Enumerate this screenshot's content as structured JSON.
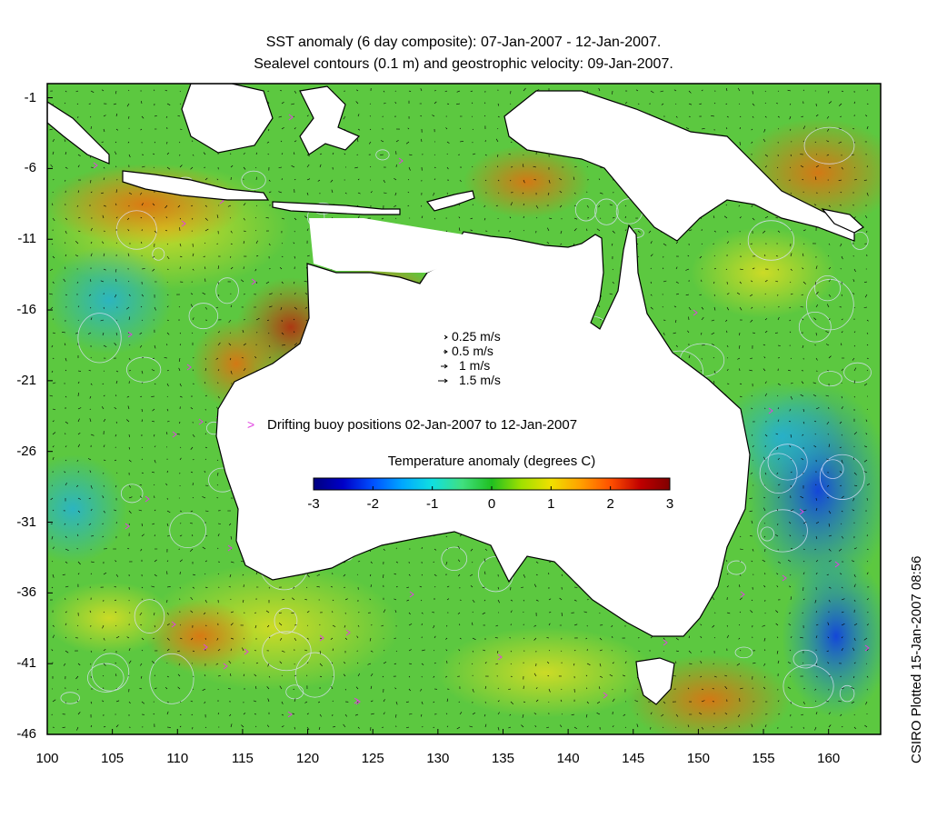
{
  "title": {
    "line1": "SST anomaly (6 day composite): 07-Jan-2007 - 12-Jan-2007.",
    "line2": "Sealevel contours (0.1 m) and geostrophic velocity: 09-Jan-2007."
  },
  "axes": {
    "x_ticks": [
      "100",
      "105",
      "110",
      "115",
      "120",
      "125",
      "130",
      "135",
      "140",
      "145",
      "150",
      "155",
      "160"
    ],
    "y_ticks": [
      "-1",
      "-6",
      "-11",
      "-16",
      "-21",
      "-26",
      "-31",
      "-36",
      "-41",
      "-46"
    ],
    "x_range": [
      100,
      164
    ],
    "y_range": [
      -46,
      0
    ]
  },
  "velocity_key": {
    "items": [
      "0.25 m/s",
      "0.5 m/s",
      "1 m/s",
      "1.5 m/s"
    ]
  },
  "buoy_legend": {
    "symbol": ">",
    "label": "Drifting buoy positions 02-Jan-2007 to 12-Jan-2007",
    "color": "#e040e0"
  },
  "colorbar": {
    "title": "Temperature anomaly (degrees C)",
    "ticks": [
      "-3",
      "-2",
      "-1",
      "0",
      "1",
      "2",
      "3"
    ],
    "range": [
      -3,
      3
    ],
    "colors": [
      "#00007f",
      "#0000c8",
      "#0050ff",
      "#00a8ff",
      "#10e0e0",
      "#40e080",
      "#20c020",
      "#a0e000",
      "#f0e000",
      "#ffa000",
      "#ff5000",
      "#c00000",
      "#800000"
    ]
  },
  "credit": "CSIRO Plotted 15-Jan-2007 08:56",
  "colors": {
    "land": "#ffffff",
    "coastline": "#000000",
    "contours": "#e0e0ff",
    "vectors": "#000000"
  }
}
